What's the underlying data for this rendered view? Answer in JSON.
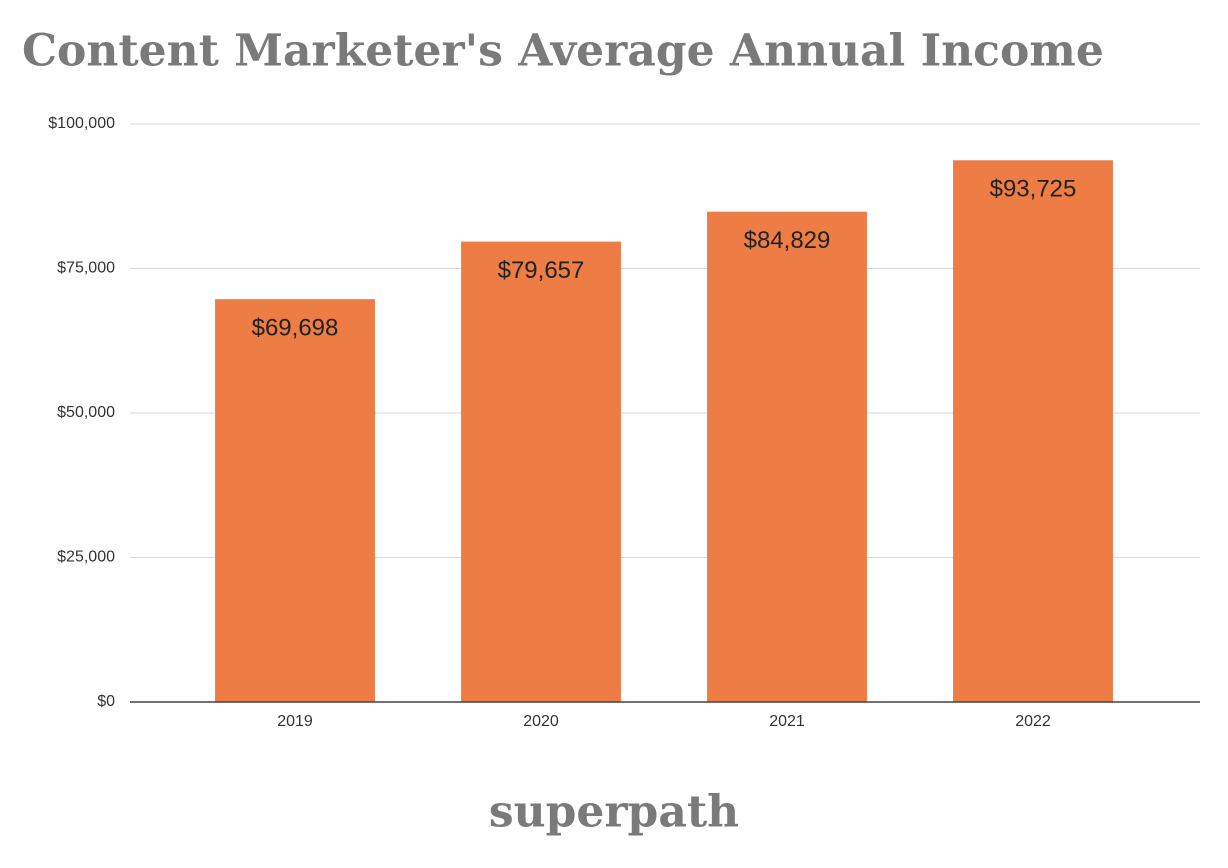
{
  "chart_data": {
    "type": "bar",
    "title": "Content Marketer's Average Annual Income",
    "categories": [
      "2019",
      "2020",
      "2021",
      "2022"
    ],
    "values": [
      69698,
      79657,
      84829,
      93725
    ],
    "value_labels": [
      "$69,698",
      "$79,657",
      "$84,829",
      "$93,725"
    ],
    "color": "#ed7d45",
    "ylim": [
      0,
      100000
    ],
    "yticks": [
      {
        "value": 0,
        "label": "$0"
      },
      {
        "value": 25000,
        "label": "$25,000"
      },
      {
        "value": 50000,
        "label": "$50,000"
      },
      {
        "value": 75000,
        "label": "$75,000"
      },
      {
        "value": 100000,
        "label": "$100,000"
      }
    ],
    "grid": true,
    "brand": "superpath"
  }
}
